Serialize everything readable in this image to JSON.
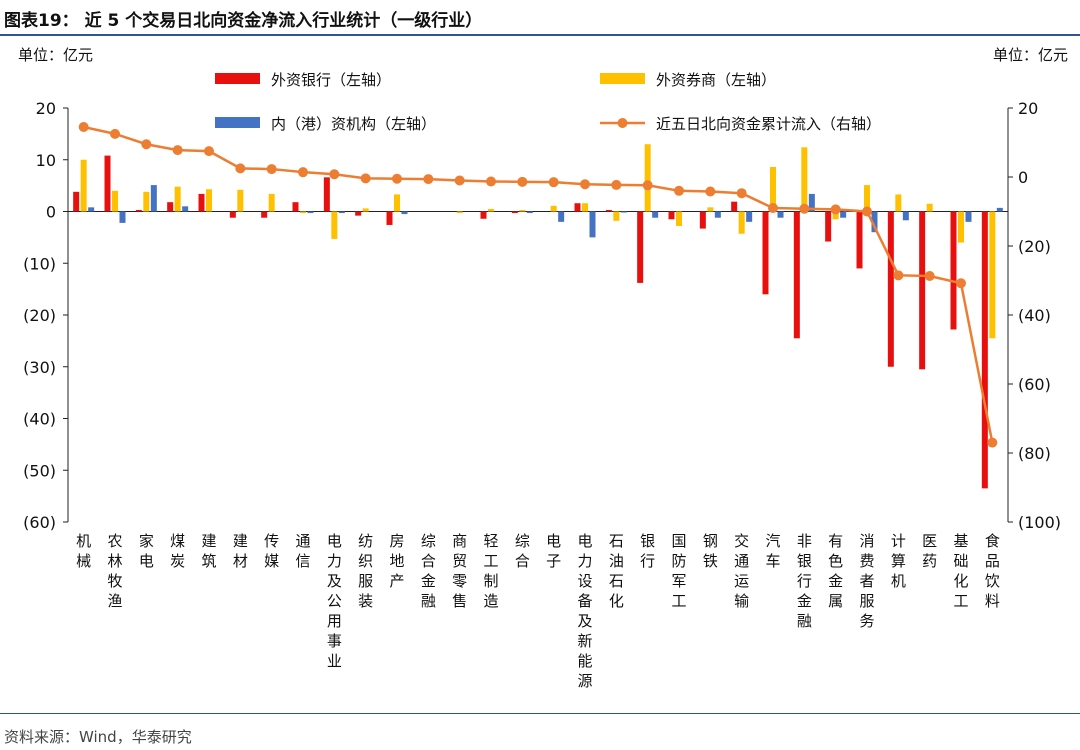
{
  "figure": {
    "title": "图表19：  近 5 个交易日北向资金净流入行业统计（一级行业）",
    "unit_left": "单位：亿元",
    "unit_right": "单位：亿元",
    "source": "资料来源：Wind，华泰研究"
  },
  "chart_data": {
    "type": "bar",
    "categories": [
      "机械",
      "农林牧渔",
      "家电",
      "煤炭",
      "建筑",
      "建材",
      "传媒",
      "通信",
      "电力及公用事业",
      "纺织服装",
      "房地产",
      "综合金融",
      "商贸零售",
      "轻工制造",
      "综合",
      "电子",
      "电力设备及新能源",
      "石油石化",
      "银行",
      "国防军工",
      "钢铁",
      "交通运输",
      "汽车",
      "非银行金融",
      "有色金属",
      "消费者服务",
      "计算机",
      "医药",
      "基础化工",
      "食品饮料"
    ],
    "series": [
      {
        "name": "外资银行（左轴）",
        "type": "bar",
        "axis": "left",
        "color": "#e8100f",
        "values": [
          3.8,
          10.8,
          0.3,
          1.8,
          3.4,
          -1.2,
          -1.2,
          1.8,
          6.6,
          -0.8,
          -2.6,
          0,
          0,
          -1.4,
          -0.3,
          0,
          1.6,
          0.3,
          -13.8,
          -1.5,
          -3.3,
          1.9,
          -16,
          -24.5,
          -5.8,
          -11,
          -30,
          -30.5,
          -22.8,
          -53.5
        ]
      },
      {
        "name": "外资券商（左轴）",
        "type": "bar",
        "axis": "left",
        "color": "#ffc000",
        "values": [
          10,
          4,
          3.8,
          4.8,
          4.3,
          4.2,
          3.4,
          -0.3,
          -5.3,
          0.6,
          3.3,
          0,
          -0.3,
          0.5,
          0.3,
          1.1,
          1.6,
          -1.8,
          13,
          -2.8,
          0.8,
          -4.3,
          8.6,
          12.4,
          -1.5,
          5.1,
          3.3,
          1.5,
          -6,
          -24.5
        ]
      },
      {
        "name": "内（港）资机构（左轴）",
        "type": "bar",
        "axis": "left",
        "color": "#4472c4",
        "values": [
          0.8,
          -2.2,
          5.1,
          1,
          0,
          0,
          0,
          -0.3,
          -0.3,
          0,
          -0.5,
          0,
          0,
          0,
          -0.3,
          -2,
          -5,
          -0.2,
          -1.2,
          0,
          -1.2,
          -2,
          -1.2,
          3.4,
          -1.2,
          -4,
          -1.7,
          0,
          -2,
          0.7
        ]
      },
      {
        "name": "近五日北向资金累计流入（右轴）",
        "type": "line",
        "axis": "right",
        "color": "#ed7d31",
        "values": [
          14.5,
          12.5,
          9.5,
          7.8,
          7.5,
          2.5,
          2.3,
          1.4,
          0.8,
          -0.4,
          -0.5,
          -0.6,
          -1,
          -1.3,
          -1.4,
          -1.5,
          -2.1,
          -2.3,
          -2.4,
          -4,
          -4.2,
          -4.7,
          -9,
          -9.2,
          -9.4,
          -10,
          -28.5,
          -28.7,
          -30.8,
          -77
        ]
      }
    ],
    "y_left": {
      "min": -60,
      "max": 20,
      "ticks": [
        20,
        10,
        0,
        -10,
        -20,
        -30,
        -40,
        -50,
        -60
      ],
      "tick_labels": [
        "20",
        "10",
        "0",
        "(10)",
        "(20)",
        "(30)",
        "(40)",
        "(50)",
        "(60)"
      ]
    },
    "y_right": {
      "min": -100,
      "max": 20,
      "ticks": [
        20,
        0,
        -20,
        -40,
        -60,
        -80,
        -100
      ],
      "tick_labels": [
        "20",
        "0",
        "(20)",
        "(40)",
        "(60)",
        "(80)",
        "(100)"
      ]
    },
    "grid": false,
    "legend_position": "top"
  }
}
